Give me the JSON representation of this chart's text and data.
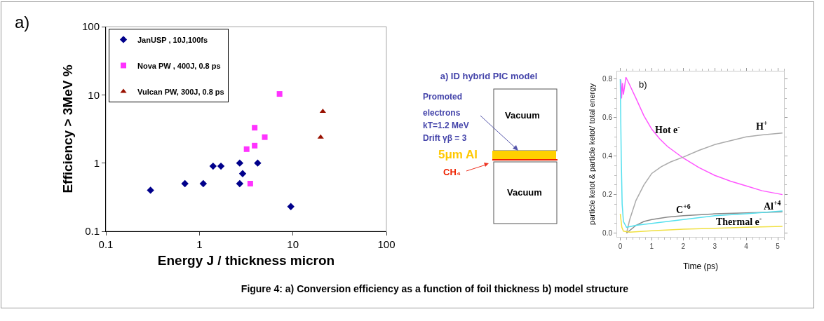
{
  "chart_data": [
    {
      "type": "scatter",
      "xlabel": "Energy J / thickness micron",
      "ylabel": "Efficiency > 3MeV %",
      "annotations": [
        "a)"
      ],
      "log": "xy",
      "xlim": [
        0.1,
        100
      ],
      "ylim": [
        0.1,
        100
      ],
      "xticks": [
        0.1,
        1,
        10,
        100
      ],
      "yticks": [
        0.1,
        1,
        10,
        100
      ],
      "grid": false,
      "legend": "top left",
      "series": [
        {
          "name": "JanUSP , 10J,100fs",
          "color": "#00008b",
          "marker": "diamond",
          "x": [
            0.3,
            0.7,
            1.1,
            1.4,
            1.7,
            2.7,
            2.9,
            2.7,
            4.2,
            9.5
          ],
          "values": [
            0.4,
            0.5,
            0.5,
            0.9,
            0.9,
            1.0,
            0.7,
            0.5,
            1.0,
            0.23
          ]
        },
        {
          "name": "Nova PW , 400J, 0.8 ps",
          "color": "#ff33ff",
          "marker": "square",
          "x": [
            7.2,
            3.9,
            5.0,
            3.9,
            3.2,
            3.5
          ],
          "values": [
            10.3,
            3.3,
            2.4,
            1.8,
            1.6,
            0.5
          ]
        },
        {
          "name": "Vulcan PW, 300J, 0.8 ps",
          "color": "#991100",
          "marker": "triangle",
          "x": [
            20.9,
            19.8
          ],
          "values": [
            5.7,
            2.4
          ]
        }
      ]
    },
    {
      "type": "other",
      "title": "a) ID hybrid PIC model",
      "annotations": [
        "Promoted",
        "electrons",
        "kT=1.2 MeV",
        "Drift γβ = 3",
        "5μm Al",
        "CH₄",
        "Vacuum",
        "Vacuum",
        "Figure 4: a) Conversion efficiency as a function of foil thickness b) model structure"
      ]
    },
    {
      "type": "line",
      "xlabel": "Time (ps)",
      "ylabel": "particle ketot & particle ketot/ total energy",
      "annotations": [
        "b)"
      ],
      "xlim": [
        -0.1,
        5.2
      ],
      "ylim": [
        -0.02,
        0.84
      ],
      "xticks": [
        0,
        1,
        2,
        3,
        4,
        5
      ],
      "yticks": [
        {
          "value": 0,
          "label": "0.0"
        },
        {
          "value": 0.2,
          "label": "0.2"
        },
        {
          "value": 0.4,
          "label": "0.4"
        },
        {
          "value": 0.6,
          "label": "0.6"
        },
        {
          "value": 0.8,
          "label": "0.8"
        }
      ],
      "grid": false,
      "legend": false,
      "marker": "none",
      "line_style": "solid",
      "series": [
        {
          "name": "Hot e$^{-}$",
          "color": "#ff55ff",
          "x": [
            0,
            0.02,
            0.04,
            0.07,
            0.1,
            0.18,
            0.3,
            0.5,
            0.75,
            1,
            1.25,
            1.5,
            2,
            2.5,
            3,
            3.5,
            4,
            4.5,
            5.15
          ],
          "values": [
            0.8,
            0.79,
            0.7,
            0.78,
            0.72,
            0.81,
            0.77,
            0.7,
            0.61,
            0.54,
            0.49,
            0.45,
            0.39,
            0.34,
            0.3,
            0.27,
            0.245,
            0.22,
            0.2
          ]
        },
        {
          "name": "H$^{+}$",
          "color": "#aaaaaa",
          "x": [
            0.2,
            0.3,
            0.5,
            0.75,
            1,
            1.3,
            1.6,
            2,
            2.5,
            3,
            3.5,
            4,
            4.5,
            5.15
          ],
          "values": [
            0.0,
            0.07,
            0.17,
            0.25,
            0.31,
            0.345,
            0.37,
            0.395,
            0.43,
            0.46,
            0.48,
            0.5,
            0.51,
            0.52
          ]
        },
        {
          "name": "C$^{+6}$",
          "color": "#888888",
          "x": [
            0.2,
            0.35,
            0.5,
            0.75,
            1,
            1.5,
            2,
            3,
            4,
            5.15
          ],
          "values": [
            0.0,
            0.02,
            0.04,
            0.06,
            0.07,
            0.083,
            0.09,
            0.1,
            0.105,
            0.11
          ]
        },
        {
          "name": "Al$^{+4}$",
          "color": "#55e0ee",
          "x": [
            0,
            0.03,
            0.06,
            0.1,
            0.2,
            0.5,
            1,
            2,
            3,
            4,
            5.15
          ],
          "values": [
            0.8,
            0.4,
            0.15,
            0.06,
            0.03,
            0.04,
            0.05,
            0.07,
            0.09,
            0.1,
            0.115
          ]
        },
        {
          "name": "Thermal e$^{-}$",
          "color": "#f0e040",
          "x": [
            0,
            0.05,
            0.1,
            0.3,
            1,
            2,
            3,
            4,
            5.15
          ],
          "values": [
            0.1,
            0.03,
            0.01,
            0.005,
            0.012,
            0.02,
            0.025,
            0.03,
            0.035
          ]
        }
      ]
    }
  ]
}
